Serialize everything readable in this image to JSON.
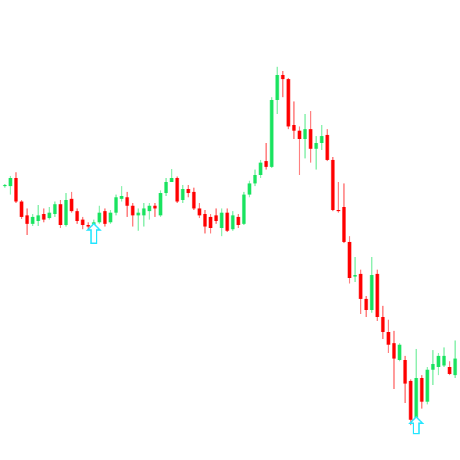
{
  "chart_data": {
    "type": "candlestick",
    "up_color": "#19e35f",
    "down_color": "#ff0000",
    "ylim": [
      0,
      662
    ],
    "open": [
      394,
      394,
      406,
      372,
      352,
      340,
      344,
      354,
      348,
      354,
      368,
      338,
      376,
      358,
      346,
      338,
      336,
      342,
      358,
      342,
      356,
      376,
      378,
      366,
      352,
      352,
      358,
      366,
      352,
      384,
      400,
      406,
      374,
      390,
      386,
      362,
      354,
      350,
      352,
      334,
      356,
      332,
      350,
      340,
      382,
      398,
      410,
      430,
      422,
      518,
      554,
      548,
      482,
      474,
      462,
      476,
      448,
      456,
      468,
      432,
      360,
      364,
      314,
      264,
      268,
      232,
      216,
      268,
      206,
      184,
      168,
      144,
      144,
      114,
      58,
      118,
      84,
      130,
      134,
      136,
      134,
      122
    ],
    "high": [
      397,
      409,
      414,
      374,
      362,
      354,
      367,
      362,
      364,
      372,
      374,
      384,
      386,
      362,
      350,
      342,
      346,
      366,
      362,
      360,
      382,
      394,
      386,
      370,
      362,
      370,
      370,
      370,
      388,
      406,
      419,
      408,
      396,
      396,
      392,
      370,
      360,
      354,
      362,
      362,
      362,
      358,
      354,
      386,
      402,
      418,
      432,
      456,
      522,
      566,
      560,
      550,
      516,
      480,
      498,
      502,
      466,
      482,
      476,
      436,
      400,
      398,
      322,
      292,
      274,
      236,
      292,
      274,
      222,
      202,
      186,
      168,
      150,
      116,
      160,
      122,
      134,
      158,
      154,
      162,
      142,
      172
    ],
    "low": [
      392,
      382,
      370,
      347,
      324,
      337,
      337,
      342,
      346,
      350,
      334,
      336,
      356,
      340,
      332,
      330,
      332,
      340,
      336,
      340,
      352,
      372,
      350,
      336,
      330,
      336,
      346,
      350,
      350,
      380,
      400,
      370,
      370,
      378,
      360,
      348,
      326,
      326,
      340,
      322,
      328,
      330,
      334,
      338,
      378,
      394,
      406,
      418,
      420,
      498,
      522,
      476,
      462,
      410,
      434,
      428,
      418,
      446,
      430,
      358,
      356,
      312,
      254,
      256,
      210,
      206,
      212,
      200,
      174,
      154,
      102,
      142,
      82,
      50,
      52,
      74,
      80,
      108,
      122,
      134,
      122,
      118
    ],
    "close": [
      396,
      406,
      372,
      350,
      340,
      350,
      352,
      346,
      356,
      368,
      338,
      374,
      358,
      344,
      338,
      336,
      342,
      356,
      340,
      356,
      378,
      380,
      366,
      352,
      356,
      362,
      366,
      362,
      384,
      400,
      406,
      372,
      390,
      384,
      362,
      352,
      336,
      334,
      344,
      356,
      330,
      352,
      338,
      382,
      398,
      410,
      428,
      422,
      518,
      554,
      548,
      480,
      474,
      462,
      476,
      448,
      456,
      466,
      432,
      360,
      358,
      314,
      262,
      266,
      232,
      216,
      266,
      206,
      184,
      166,
      146,
      166,
      110,
      58,
      118,
      84,
      130,
      138,
      150,
      150,
      124,
      146
    ]
  }
}
